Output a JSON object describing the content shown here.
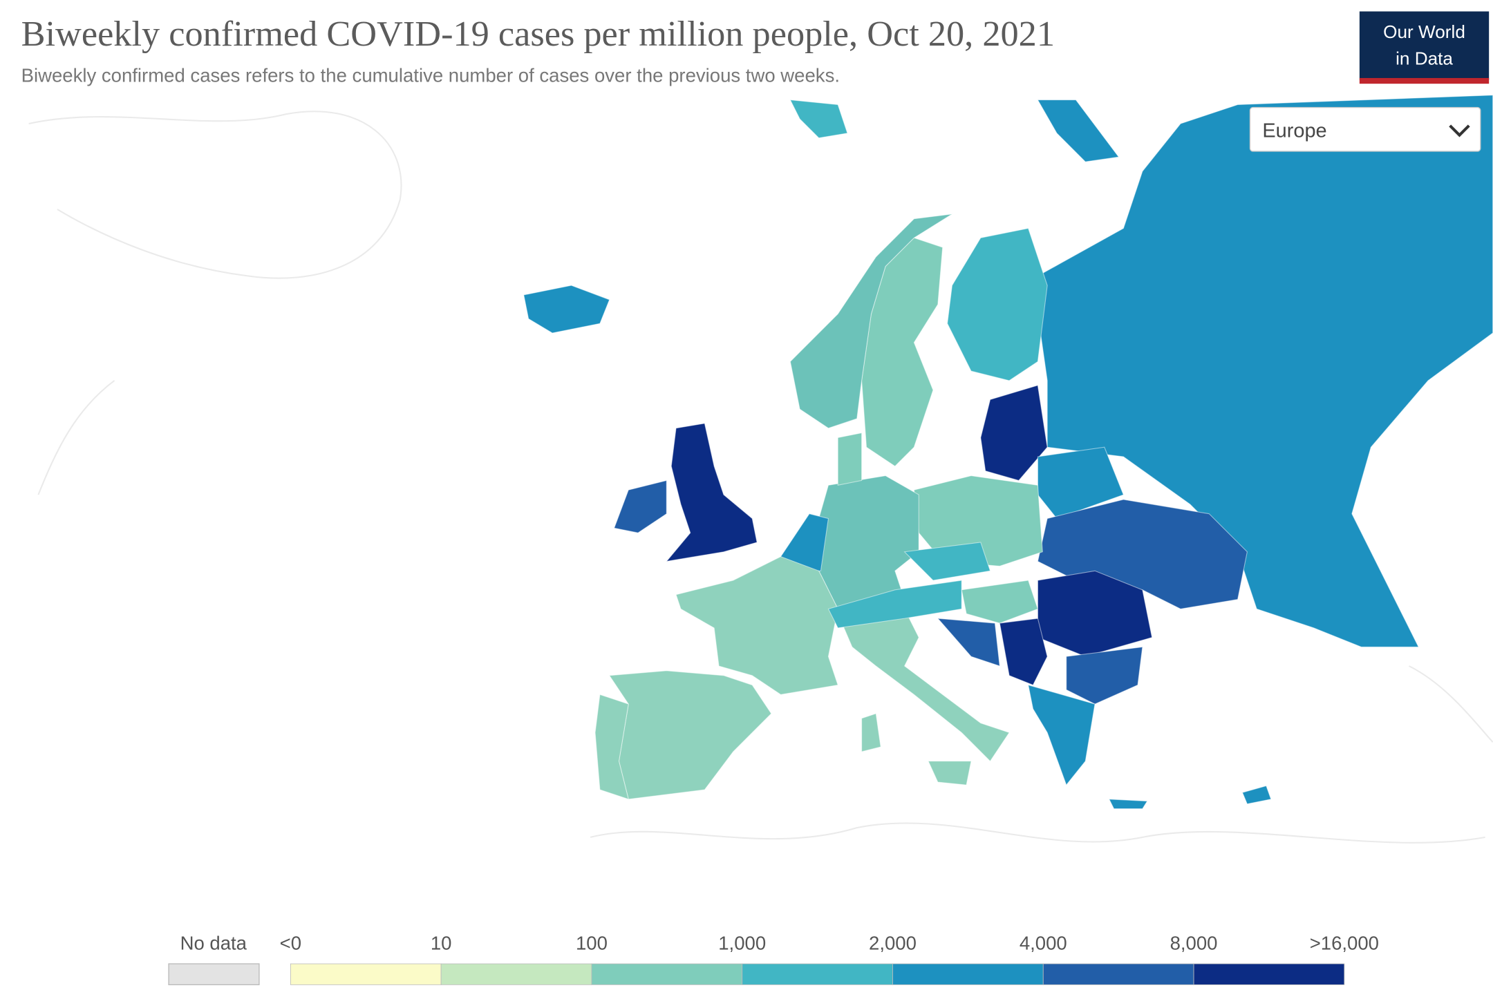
{
  "header": {
    "title": "Biweekly confirmed COVID-19 cases per million people, Oct 20, 2021",
    "subtitle": "Biweekly confirmed cases refers to the cumulative number of cases over the previous two weeks.",
    "logo": [
      "Our World",
      "in Data"
    ]
  },
  "controls": {
    "region": "Europe"
  },
  "legend": {
    "no_data": "No data",
    "no_data_color": "#e3e3e3",
    "labels": [
      "<0",
      "10",
      "100",
      "1,000",
      "2,000",
      "4,000",
      "8,000",
      ">16,000"
    ],
    "colors": [
      "#fbfbc8",
      "#c5e8bf",
      "#7fcdbb",
      "#41b6c4",
      "#1d91c0",
      "#225ea8",
      "#0c2c84"
    ]
  }
}
